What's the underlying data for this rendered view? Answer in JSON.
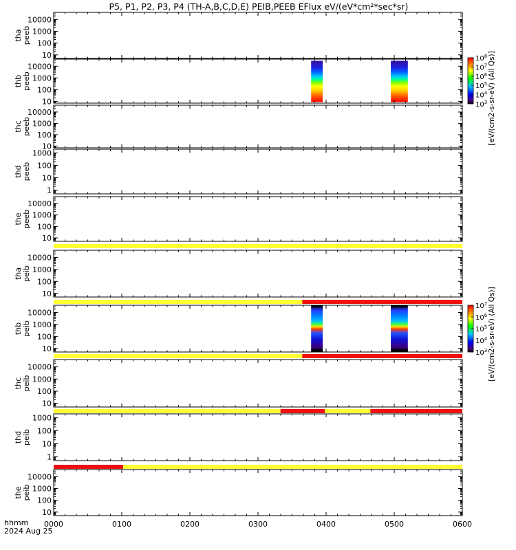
{
  "title": "P5, P1, P2, P3, P4 (TH-A,B,C,D,E) PEIB,PEEB EFlux eV/(eV*cm²*sec*sr)",
  "time_axis": {
    "label_line1": "hhmm",
    "label_line2": "2024 Aug 25",
    "ticks": [
      "0000",
      "0100",
      "0200",
      "0300",
      "0400",
      "0500",
      "0600"
    ],
    "range_hours": [
      0,
      6
    ]
  },
  "colorbars": [
    {
      "label": "[eV/(cm2-s-sr-eV) (All Qs)]",
      "exp_range": [
        3,
        8
      ]
    },
    {
      "label": "[eV/(cm2-s-sr-eV) (All Qs)]",
      "exp_range": [
        3,
        7
      ]
    }
  ],
  "chart_data": {
    "type": "heatmap",
    "x_unit": "hours since 2024 Aug 25 00:00",
    "panels": [
      {
        "label_top": "tha",
        "label_bottom": "peeb",
        "yscale": "log",
        "ylim": [
          5,
          40000
        ],
        "yticks": [
          "10",
          "100",
          "1000",
          "10000"
        ],
        "blocks": []
      },
      {
        "label_top": "thb",
        "label_bottom": "peeb",
        "yscale": "log",
        "ylim": [
          7,
          40000
        ],
        "yticks": [
          "10",
          "100",
          "1000",
          "10000"
        ],
        "blocks": [
          {
            "x": [
              3.78,
              3.95
            ],
            "profile": "electron"
          },
          {
            "x": [
              4.95,
              5.2
            ],
            "profile": "electron"
          }
        ]
      },
      {
        "label_top": "thc",
        "label_bottom": "peeb",
        "yscale": "log",
        "ylim": [
          7,
          40000
        ],
        "yticks": [
          "10",
          "100",
          "1000",
          "10000"
        ],
        "blocks": []
      },
      {
        "label_top": "thd",
        "label_bottom": "peeb",
        "yscale": "log",
        "ylim": [
          0.5,
          2000
        ],
        "yticks": [
          "1",
          "10",
          "100",
          "1000"
        ],
        "blocks": []
      },
      {
        "label_top": "the",
        "label_bottom": "peeb",
        "yscale": "log",
        "ylim": [
          5,
          40000
        ],
        "yticks": [
          "10",
          "100",
          "1000",
          "10000"
        ],
        "blocks": []
      },
      {
        "label_top": "tha",
        "label_bottom": "peib",
        "yscale": "log",
        "ylim": [
          5,
          40000
        ],
        "yticks": [
          "10",
          "100",
          "1000",
          "10000"
        ],
        "blocks": []
      },
      {
        "label_top": "thb",
        "label_bottom": "peib",
        "yscale": "log",
        "ylim": [
          5,
          40000
        ],
        "yticks": [
          "10",
          "100",
          "1000",
          "10000"
        ],
        "blocks": [
          {
            "x": [
              3.78,
              3.95
            ],
            "profile": "ion"
          },
          {
            "x": [
              4.95,
              5.2
            ],
            "profile": "ion"
          }
        ]
      },
      {
        "label_top": "thc",
        "label_bottom": "peib",
        "yscale": "log",
        "ylim": [
          5,
          40000
        ],
        "yticks": [
          "10",
          "100",
          "1000",
          "10000"
        ],
        "blocks": []
      },
      {
        "label_top": "thd",
        "label_bottom": "peib",
        "yscale": "log",
        "ylim": [
          0.5,
          2000
        ],
        "yticks": [
          "1",
          "10",
          "100",
          "1000"
        ],
        "blocks": []
      },
      {
        "label_top": "the",
        "label_bottom": "peib",
        "yscale": "log",
        "ylim": [
          5,
          40000
        ],
        "yticks": [
          "10",
          "100",
          "1000",
          "10000"
        ],
        "blocks": []
      }
    ],
    "mode_bars": [
      {
        "above_panel": 5,
        "segments": [
          {
            "x": [
              0,
              6
            ],
            "color": "#ffff33"
          }
        ]
      },
      {
        "above_panel": 6,
        "segments": [
          {
            "x": [
              0,
              3.65
            ],
            "color": "#ffff33"
          },
          {
            "x": [
              3.65,
              6
            ],
            "color": "#ee1111"
          }
        ]
      },
      {
        "above_panel": 7,
        "segments": [
          {
            "x": [
              0,
              3.65
            ],
            "color": "#ffff33"
          },
          {
            "x": [
              3.65,
              6
            ],
            "color": "#ee1111"
          }
        ]
      },
      {
        "above_panel": 8,
        "segments": [
          {
            "x": [
              0,
              3.33
            ],
            "color": "#ffff33"
          },
          {
            "x": [
              3.33,
              3.98
            ],
            "color": "#ee1111"
          },
          {
            "x": [
              3.98,
              4.65
            ],
            "color": "#ffff33"
          },
          {
            "x": [
              4.65,
              6
            ],
            "color": "#ee1111"
          }
        ]
      },
      {
        "above_panel": 9,
        "segments": [
          {
            "x": [
              0,
              1.02
            ],
            "color": "#ee1111"
          },
          {
            "x": [
              1.02,
              6
            ],
            "color": "#ffff33"
          }
        ]
      }
    ]
  }
}
